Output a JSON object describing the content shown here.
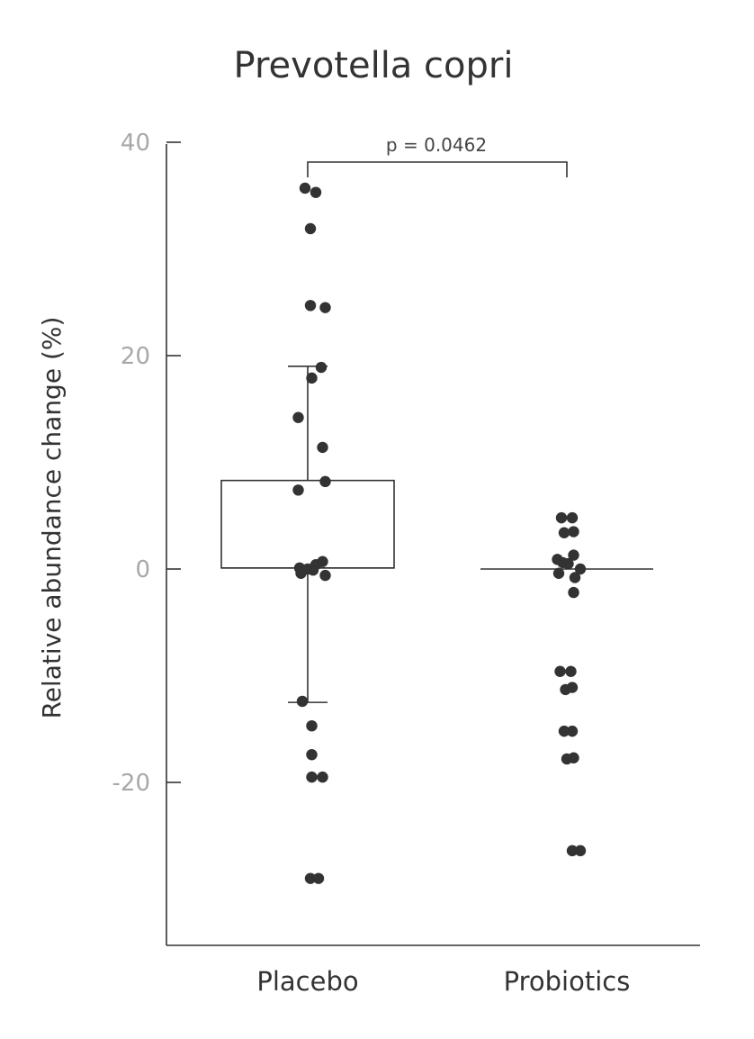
{
  "chart_data": {
    "type": "scatter",
    "title": "Prevotella copri",
    "xlabel": "",
    "ylabel": "Relative abundance change (%)",
    "categories": [
      "Placebo",
      "Probiotics"
    ],
    "ylim": [
      -35,
      41
    ],
    "yticks": [
      40,
      20,
      0,
      -20
    ],
    "ytick_labels": [
      "40",
      "20",
      "0",
      "-20"
    ],
    "grid": false,
    "annotation": {
      "text": "p = 0.0462",
      "from": "Placebo",
      "to": "Probiotics"
    },
    "boxes": [
      {
        "category": "Placebo",
        "q1": 0.1,
        "median": 0.1,
        "q3": 8.3,
        "whisker_low": -12.5,
        "whisker_high": 19.0
      },
      {
        "category": "Probiotics",
        "q1": 0.0,
        "median": 0.0,
        "q3": 0.0,
        "whisker_low": 0.0,
        "whisker_high": 0.0
      }
    ],
    "series": [
      {
        "category": "Placebo",
        "points": [
          {
            "x": -0.02,
            "y": 35.7
          },
          {
            "x": 0.06,
            "y": 35.3
          },
          {
            "x": 0.02,
            "y": 31.9
          },
          {
            "x": 0.02,
            "y": 24.7
          },
          {
            "x": 0.13,
            "y": 24.5
          },
          {
            "x": 0.1,
            "y": 18.9
          },
          {
            "x": 0.03,
            "y": 17.9
          },
          {
            "x": -0.07,
            "y": 14.2
          },
          {
            "x": 0.11,
            "y": 11.4
          },
          {
            "x": 0.13,
            "y": 8.2
          },
          {
            "x": -0.07,
            "y": 7.4
          },
          {
            "x": 0.11,
            "y": 0.7
          },
          {
            "x": 0.06,
            "y": 0.4
          },
          {
            "x": -0.06,
            "y": 0.1
          },
          {
            "x": 0.0,
            "y": 0.0
          },
          {
            "x": 0.04,
            "y": -0.1
          },
          {
            "x": -0.05,
            "y": -0.4
          },
          {
            "x": 0.13,
            "y": -0.6
          },
          {
            "x": -0.04,
            "y": -12.4
          },
          {
            "x": 0.03,
            "y": -14.7
          },
          {
            "x": 0.03,
            "y": -17.4
          },
          {
            "x": 0.03,
            "y": -19.5
          },
          {
            "x": 0.11,
            "y": -19.5
          },
          {
            "x": 0.02,
            "y": -29.0
          },
          {
            "x": 0.08,
            "y": -29.0
          }
        ]
      },
      {
        "category": "Probiotics",
        "points": [
          {
            "x": -0.04,
            "y": 4.8
          },
          {
            "x": 0.04,
            "y": 4.8
          },
          {
            "x": -0.02,
            "y": 3.4
          },
          {
            "x": 0.05,
            "y": 3.5
          },
          {
            "x": 0.05,
            "y": 1.3
          },
          {
            "x": -0.07,
            "y": 0.9
          },
          {
            "x": -0.03,
            "y": 0.6
          },
          {
            "x": 0.01,
            "y": 0.5
          },
          {
            "x": 0.1,
            "y": 0.0
          },
          {
            "x": -0.06,
            "y": -0.4
          },
          {
            "x": 0.06,
            "y": -0.8
          },
          {
            "x": 0.05,
            "y": -2.2
          },
          {
            "x": -0.05,
            "y": -9.6
          },
          {
            "x": 0.03,
            "y": -9.6
          },
          {
            "x": -0.01,
            "y": -11.3
          },
          {
            "x": 0.04,
            "y": -11.1
          },
          {
            "x": -0.02,
            "y": -15.2
          },
          {
            "x": 0.04,
            "y": -15.2
          },
          {
            "x": 0.0,
            "y": -17.8
          },
          {
            "x": 0.05,
            "y": -17.7
          },
          {
            "x": 0.04,
            "y": -26.4
          },
          {
            "x": 0.1,
            "y": -26.4
          }
        ]
      }
    ]
  }
}
